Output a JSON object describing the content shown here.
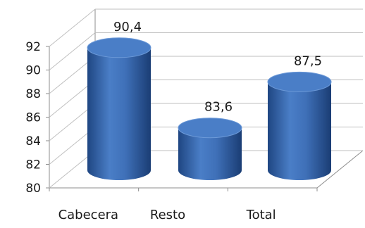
{
  "chart_data": {
    "type": "bar",
    "style": "3d-cylinder",
    "categories": [
      "Cabecera",
      "Resto",
      "Total"
    ],
    "values": [
      90.4,
      83.6,
      87.5
    ],
    "data_labels": [
      "90,4",
      "83,6",
      "87,5"
    ],
    "y_ticks": [
      "80",
      "82",
      "84",
      "86",
      "88",
      "90",
      "92"
    ],
    "ylim": [
      80,
      92
    ],
    "grid": true,
    "legend": "none",
    "colors": {
      "bar": "#3f70b8",
      "bar_dark": "#1f4682",
      "bar_light": "#6d9ad8",
      "top": "#4a7ec7",
      "grid": "#bfbfbf",
      "axis": "#8c8c8c"
    }
  }
}
